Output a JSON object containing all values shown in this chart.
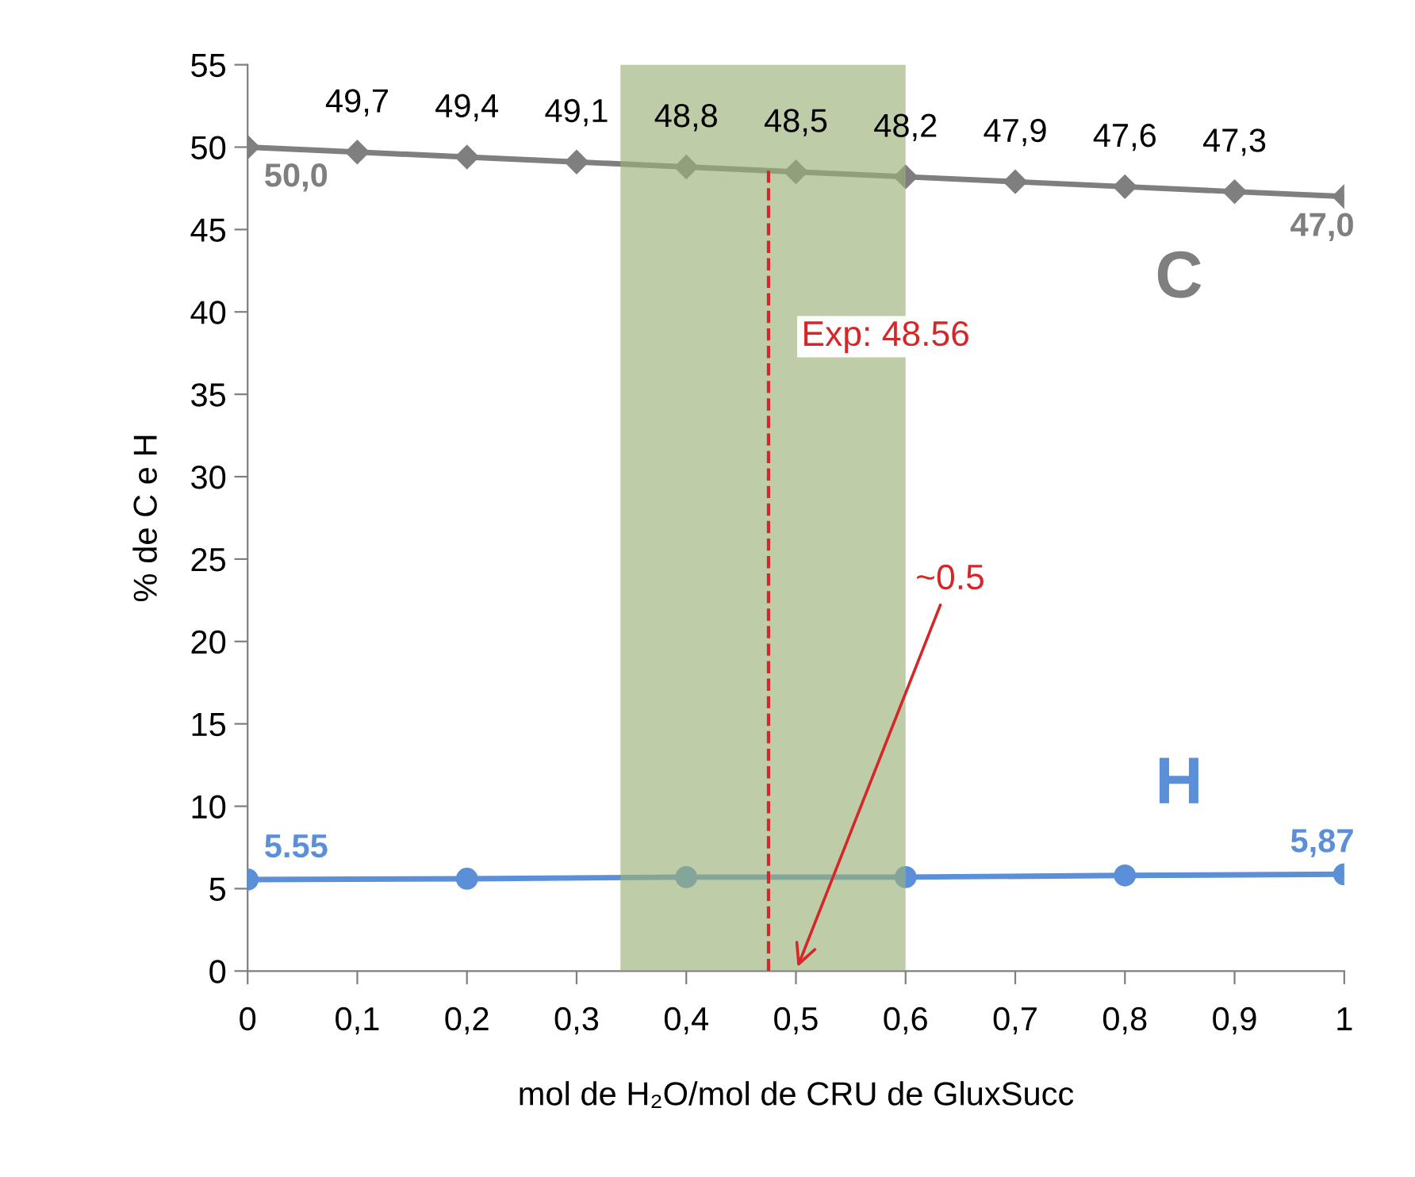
{
  "chart_data": {
    "type": "line",
    "xlabel": "mol de H₂O/mol de CRU de GluxSucc",
    "ylabel": "% de C e H",
    "xlim": [
      0,
      1
    ],
    "xticks": [
      0,
      {
        "value": 0.1,
        "label": "0,1"
      },
      {
        "value": 0.2,
        "label": "0,2"
      },
      {
        "value": 0.3,
        "label": "0,3"
      },
      {
        "value": 0.4,
        "label": "0,4"
      },
      {
        "value": 0.5,
        "label": "0,5"
      },
      {
        "value": 0.6,
        "label": "0,6"
      },
      {
        "value": 0.7,
        "label": "0,7"
      },
      {
        "value": 0.8,
        "label": "0,8"
      },
      {
        "value": 0.9,
        "label": "0,9"
      },
      1
    ],
    "ylim": [
      0,
      55
    ],
    "yticks": [
      0,
      5,
      10,
      15,
      20,
      25,
      30,
      35,
      40,
      45,
      50,
      55
    ],
    "grid": false,
    "legend": false,
    "series": [
      {
        "name": "C",
        "color": "#7f7f7f",
        "marker": "diamond",
        "x": [
          0,
          0.1,
          0.2,
          0.3,
          0.4,
          0.5,
          0.6,
          0.7,
          0.8,
          0.9,
          1
        ],
        "values": [
          50.0,
          49.7,
          49.4,
          49.1,
          48.8,
          48.5,
          48.2,
          47.9,
          47.6,
          47.3,
          47.0
        ],
        "value_labels": [
          "50,0",
          "49,7",
          "49,4",
          "49,1",
          "48,8",
          "48,5",
          "48,2",
          "47,9",
          "47,6",
          "47,3",
          "47,0"
        ]
      },
      {
        "name": "H",
        "color": "#5b8fd8",
        "marker": "circle",
        "x": [
          0,
          0.2,
          0.4,
          0.6,
          0.8,
          1
        ],
        "values": [
          5.55,
          5.6,
          5.7,
          5.7,
          5.8,
          5.87
        ],
        "value_labels": [
          "5.55",
          null,
          null,
          null,
          null,
          "5,87"
        ]
      }
    ],
    "bands": [
      {
        "axis": "x",
        "from": 0.34,
        "to": 0.6,
        "color": "#9bb07a"
      }
    ],
    "ref_lines": [
      {
        "axis": "x",
        "value": 0.475,
        "color": "#d62728",
        "line_style": "dashed"
      }
    ],
    "annotations": [
      "Exp: 48.56",
      {
        "text": "~0.5",
        "x": 0.5,
        "y": 0
      }
    ]
  }
}
